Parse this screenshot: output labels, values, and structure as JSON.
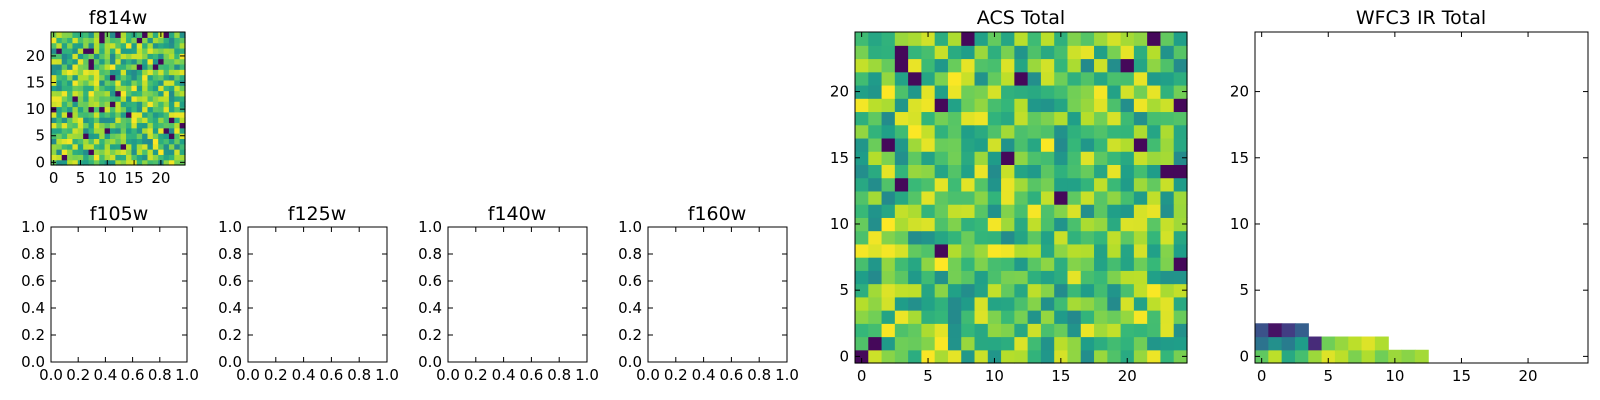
{
  "chart_data": [
    {
      "id": "f814w",
      "type": "heatmap",
      "title": "f814w",
      "grid_size": 25,
      "seed": 814,
      "fill": "random",
      "xlim": [
        -0.5,
        24.5
      ],
      "ylim": [
        -0.5,
        24.5
      ],
      "xticks": [
        0,
        5,
        10,
        15,
        20
      ],
      "xtick_labels": [
        "0",
        "5",
        "10",
        "15",
        "20"
      ],
      "yticks": [
        0,
        5,
        10,
        15,
        20
      ],
      "ytick_labels": [
        "0",
        "5",
        "10",
        "15",
        "20"
      ]
    },
    {
      "id": "f105w",
      "type": "empty",
      "title": "f105w",
      "xlim": [
        0,
        1
      ],
      "ylim": [
        0,
        1
      ],
      "xticks": [
        0,
        0.2,
        0.4,
        0.6,
        0.8,
        1.0
      ],
      "xtick_labels": [
        "0.0",
        "0.2",
        "0.4",
        "0.6",
        "0.8",
        "1.0"
      ],
      "yticks": [
        0,
        0.2,
        0.4,
        0.6,
        0.8,
        1.0
      ],
      "ytick_labels": [
        "0.0",
        "0.2",
        "0.4",
        "0.6",
        "0.8",
        "1.0"
      ]
    },
    {
      "id": "f125w",
      "type": "empty",
      "title": "f125w",
      "xlim": [
        0,
        1
      ],
      "ylim": [
        0,
        1
      ],
      "xticks": [
        0,
        0.2,
        0.4,
        0.6,
        0.8,
        1.0
      ],
      "xtick_labels": [
        "0.0",
        "0.2",
        "0.4",
        "0.6",
        "0.8",
        "1.0"
      ],
      "yticks": [
        0,
        0.2,
        0.4,
        0.6,
        0.8,
        1.0
      ],
      "ytick_labels": [
        "0.0",
        "0.2",
        "0.4",
        "0.6",
        "0.8",
        "1.0"
      ]
    },
    {
      "id": "f140w",
      "type": "empty",
      "title": "f140w",
      "xlim": [
        0,
        1
      ],
      "ylim": [
        0,
        1
      ],
      "xticks": [
        0,
        0.2,
        0.4,
        0.6,
        0.8,
        1.0
      ],
      "xtick_labels": [
        "0.0",
        "0.2",
        "0.4",
        "0.6",
        "0.8",
        "1.0"
      ],
      "yticks": [
        0,
        0.2,
        0.4,
        0.6,
        0.8,
        1.0
      ],
      "ytick_labels": [
        "0.0",
        "0.2",
        "0.4",
        "0.6",
        "0.8",
        "1.0"
      ]
    },
    {
      "id": "f160w",
      "type": "empty",
      "title": "f160w",
      "xlim": [
        0,
        1
      ],
      "ylim": [
        0,
        1
      ],
      "xticks": [
        0,
        0.2,
        0.4,
        0.6,
        0.8,
        1.0
      ],
      "xtick_labels": [
        "0.0",
        "0.2",
        "0.4",
        "0.6",
        "0.8",
        "1.0"
      ],
      "yticks": [
        0,
        0.2,
        0.4,
        0.6,
        0.8,
        1.0
      ],
      "ytick_labels": [
        "0.0",
        "0.2",
        "0.4",
        "0.6",
        "0.8",
        "1.0"
      ]
    },
    {
      "id": "acs_total",
      "type": "heatmap",
      "title": "ACS Total",
      "grid_size": 25,
      "seed": 2024,
      "fill": "random",
      "xlim": [
        -0.5,
        24.5
      ],
      "ylim": [
        -0.5,
        24.5
      ],
      "xticks": [
        0,
        5,
        10,
        15,
        20
      ],
      "xtick_labels": [
        "0",
        "5",
        "10",
        "15",
        "20"
      ],
      "yticks": [
        0,
        5,
        10,
        15,
        20
      ],
      "ytick_labels": [
        "0",
        "5",
        "10",
        "15",
        "20"
      ]
    },
    {
      "id": "wfc3_ir_total",
      "type": "heatmap",
      "title": "WFC3 IR Total",
      "grid_size": 25,
      "fill": "cells",
      "cells": [
        {
          "x": 0,
          "y": 0,
          "v": 0.75
        },
        {
          "x": 1,
          "y": 0,
          "v": 0.9
        },
        {
          "x": 2,
          "y": 0,
          "v": 0.6
        },
        {
          "x": 3,
          "y": 0,
          "v": 0.7
        },
        {
          "x": 4,
          "y": 0,
          "v": 0.85
        },
        {
          "x": 5,
          "y": 0,
          "v": 0.95
        },
        {
          "x": 6,
          "y": 0,
          "v": 0.9
        },
        {
          "x": 7,
          "y": 0,
          "v": 0.8
        },
        {
          "x": 8,
          "y": 0,
          "v": 0.88
        },
        {
          "x": 9,
          "y": 0,
          "v": 0.78
        },
        {
          "x": 10,
          "y": 0,
          "v": 0.85
        },
        {
          "x": 11,
          "y": 0,
          "v": 0.82
        },
        {
          "x": 12,
          "y": 0,
          "v": 0.86
        },
        {
          "x": 0,
          "y": 1,
          "v": 0.38
        },
        {
          "x": 1,
          "y": 1,
          "v": 0.5
        },
        {
          "x": 2,
          "y": 1,
          "v": 0.42
        },
        {
          "x": 3,
          "y": 1,
          "v": 0.55
        },
        {
          "x": 4,
          "y": 1,
          "v": 0.12
        },
        {
          "x": 5,
          "y": 1,
          "v": 0.78
        },
        {
          "x": 6,
          "y": 1,
          "v": 0.84
        },
        {
          "x": 7,
          "y": 1,
          "v": 0.9
        },
        {
          "x": 8,
          "y": 1,
          "v": 0.95
        },
        {
          "x": 9,
          "y": 1,
          "v": 0.88
        },
        {
          "x": 0,
          "y": 2,
          "v": 0.25
        },
        {
          "x": 1,
          "y": 2,
          "v": 0.05
        },
        {
          "x": 2,
          "y": 2,
          "v": 0.18
        },
        {
          "x": 3,
          "y": 2,
          "v": 0.3
        }
      ],
      "xlim": [
        -0.5,
        24.5
      ],
      "ylim": [
        -0.5,
        24.5
      ],
      "xticks": [
        0,
        5,
        10,
        15,
        20
      ],
      "xtick_labels": [
        "0",
        "5",
        "10",
        "15",
        "20"
      ],
      "yticks": [
        0,
        5,
        10,
        15,
        20
      ],
      "ytick_labels": [
        "0",
        "5",
        "10",
        "15",
        "20"
      ]
    }
  ]
}
